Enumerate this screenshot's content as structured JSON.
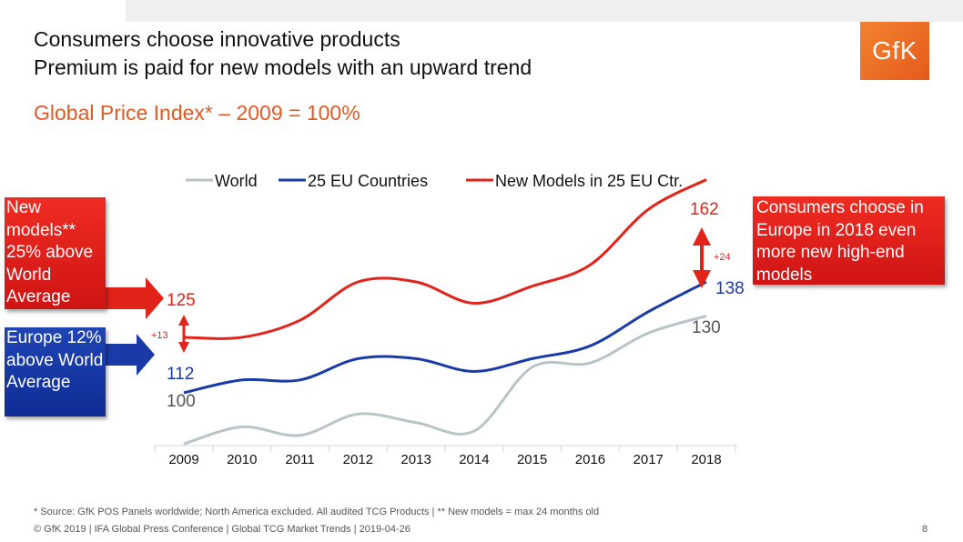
{
  "header": {
    "title_line1": "Consumers choose innovative products",
    "title_line2": "Premium is paid for new models with an upward trend",
    "subtitle": "Global Price Index* – 2009 = 100%"
  },
  "logo": {
    "text": "GfK",
    "color": "#e8622a"
  },
  "callouts": {
    "new_models": "New models** 25% above World Average",
    "europe": "Europe 12% above World Average",
    "consumers": "Consumers choose in Europe in 2018 even more new high-end models"
  },
  "chart_data": {
    "type": "line",
    "categories": [
      "2009",
      "2010",
      "2011",
      "2012",
      "2013",
      "2014",
      "2015",
      "2016",
      "2017",
      "2018"
    ],
    "series": [
      {
        "name": "World",
        "color": "#b8c4c8",
        "values": [
          100,
          104,
          102,
          107,
          105,
          103,
          118,
          119,
          126,
          130
        ]
      },
      {
        "name": "25 EU Countries",
        "color": "#1a3aa8",
        "values": [
          112,
          115,
          115,
          120,
          120,
          117,
          120,
          123,
          131,
          138
        ]
      },
      {
        "name": "New Models in 25 EU Ctr.",
        "color": "#e2231a",
        "values": [
          125,
          125,
          129,
          138,
          138,
          133,
          137,
          142,
          155,
          162
        ]
      }
    ],
    "endpoint_labels": {
      "world_start": "100",
      "world_end": "130",
      "eu_start": "112",
      "eu_end": "138",
      "new_start": "125",
      "new_end": "162"
    },
    "annotations": {
      "gap_2009": "+13",
      "gap_2018": "+24"
    },
    "ylim": [
      90,
      170
    ],
    "grid": false,
    "legend_position": "top"
  },
  "footer": {
    "footnote": "* Source: GfK POS Panels worldwide; North America excluded. All audited TCG Products | ** New models = max 24 months old",
    "copyright": "© GfK 2019 | IFA Global Press Conference | Global TCG Market Trends | 2019-04-26",
    "page_number": "8"
  }
}
